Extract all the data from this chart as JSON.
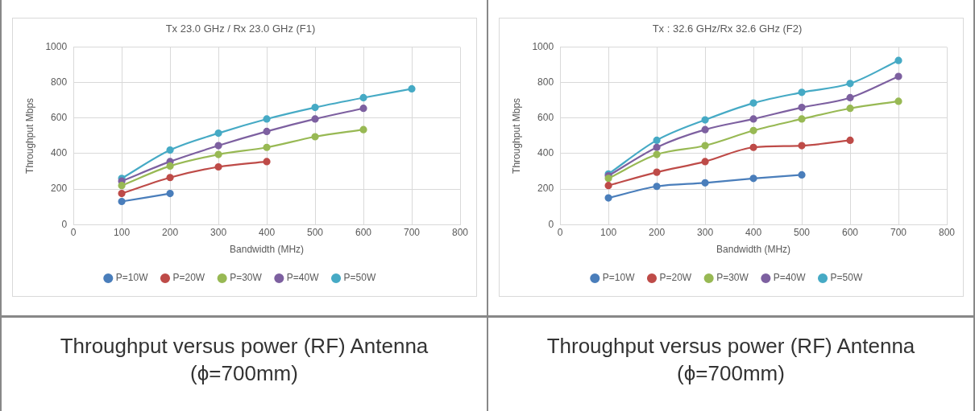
{
  "chart_data": [
    {
      "type": "line",
      "title": "Tx 23.0 GHz / Rx 23.0 GHz (F1)",
      "xlabel": "Bandwidth (MHz)",
      "ylabel": "Throughput Mbps",
      "x": [
        100,
        200,
        300,
        400,
        500,
        600,
        700
      ],
      "xlim": [
        0,
        800
      ],
      "xticks": [
        0,
        100,
        200,
        300,
        400,
        500,
        600,
        700,
        800
      ],
      "ylim": [
        0,
        1000
      ],
      "yticks": [
        0,
        200,
        400,
        600,
        800,
        1000
      ],
      "grid": true,
      "legend": "bottom",
      "marker": "circle",
      "line_style": "solid",
      "annotations": [
        "Throughput versus power (RF) Antenna (ϕ=700mm)"
      ],
      "series": [
        {
          "name": "P=10W",
          "color": "#4a7ebb",
          "values": [
            130,
            175,
            null,
            null,
            null,
            null,
            null
          ]
        },
        {
          "name": "P=20W",
          "color": "#be4b48",
          "values": [
            175,
            265,
            325,
            355,
            null,
            null,
            null
          ]
        },
        {
          "name": "P=30W",
          "color": "#98b954",
          "values": [
            220,
            330,
            395,
            435,
            495,
            535,
            null
          ]
        },
        {
          "name": "P=40W",
          "color": "#7d60a0",
          "values": [
            245,
            355,
            445,
            525,
            595,
            655,
            null
          ]
        },
        {
          "name": "P=50W",
          "color": "#46aac5",
          "values": [
            260,
            420,
            515,
            595,
            660,
            715,
            765
          ]
        }
      ]
    },
    {
      "type": "line",
      "title": "Tx : 32.6 GHz/Rx 32.6 GHz (F2)",
      "xlabel": "Bandwidth (MHz)",
      "ylabel": "Throughput Mbps",
      "x": [
        100,
        200,
        300,
        400,
        500,
        600,
        700
      ],
      "xlim": [
        0,
        800
      ],
      "xticks": [
        0,
        100,
        200,
        300,
        400,
        500,
        600,
        700,
        800
      ],
      "ylim": [
        0,
        1000
      ],
      "yticks": [
        0,
        200,
        400,
        600,
        800,
        1000
      ],
      "grid": true,
      "legend": "bottom",
      "marker": "circle",
      "line_style": "solid",
      "annotations": [
        "Throughput versus power (RF) Antenna (ϕ=700mm)"
      ],
      "series": [
        {
          "name": "P=10W",
          "color": "#4a7ebb",
          "values": [
            150,
            215,
            235,
            260,
            280,
            null,
            null
          ]
        },
        {
          "name": "P=20W",
          "color": "#be4b48",
          "values": [
            220,
            295,
            355,
            435,
            445,
            475,
            null
          ]
        },
        {
          "name": "P=30W",
          "color": "#98b954",
          "values": [
            260,
            395,
            445,
            530,
            595,
            655,
            695
          ]
        },
        {
          "name": "P=40W",
          "color": "#7d60a0",
          "values": [
            275,
            435,
            535,
            595,
            660,
            715,
            835
          ]
        },
        {
          "name": "P=50W",
          "color": "#46aac5",
          "values": [
            285,
            475,
            590,
            685,
            745,
            795,
            925
          ]
        }
      ]
    }
  ]
}
